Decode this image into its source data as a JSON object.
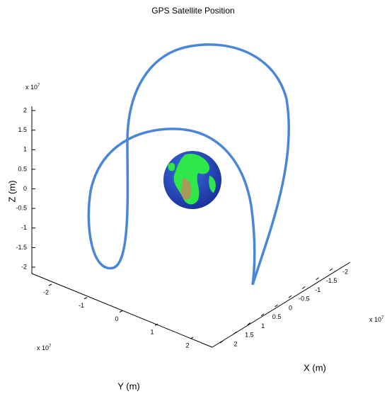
{
  "chart_data": {
    "type": "axes3d",
    "title": "GPS Satellite Position",
    "xlabel": "X (m)",
    "ylabel": "Y (m)",
    "zlabel": "Z (m)",
    "multiplier": {
      "base": "x 10",
      "power": "7"
    },
    "xlim": [
      2,
      -2
    ],
    "xticks": [
      2,
      1.5,
      1,
      0.5,
      0,
      -0.5,
      -1,
      -1.5,
      -2
    ],
    "ylim": [
      -2,
      2
    ],
    "yticks": [
      -2,
      -1,
      0,
      1,
      2
    ],
    "zlim": [
      -2,
      2
    ],
    "zticks": [
      2,
      1.5,
      1,
      0.5,
      0,
      -0.5,
      -1,
      -1.5,
      -2
    ],
    "color": "#4a86d8"
  }
}
